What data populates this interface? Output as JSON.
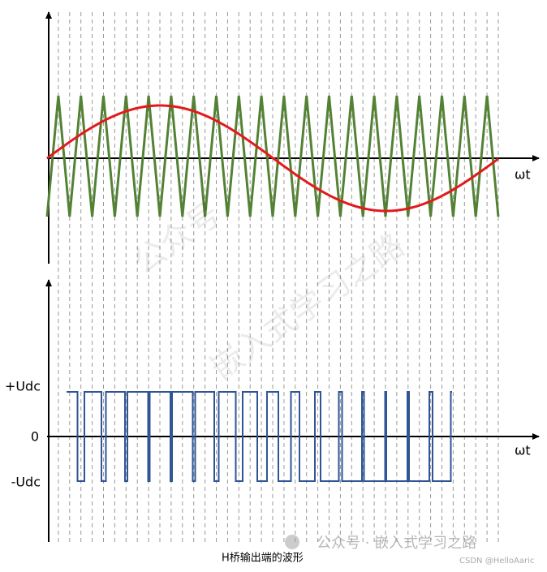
{
  "top_axis_label": "ωt",
  "bottom_axis_label": "ωt",
  "levels": {
    "high": "+Udc",
    "zero": "0",
    "low": "-Udc"
  },
  "caption": "H桥输出端的波形",
  "watermark": {
    "line1": "公众号",
    "line2": "嵌入式学习之路",
    "footer": "公众号 · 嵌入式学习之路",
    "credit": "CSDN @HelloAaric"
  }
}
